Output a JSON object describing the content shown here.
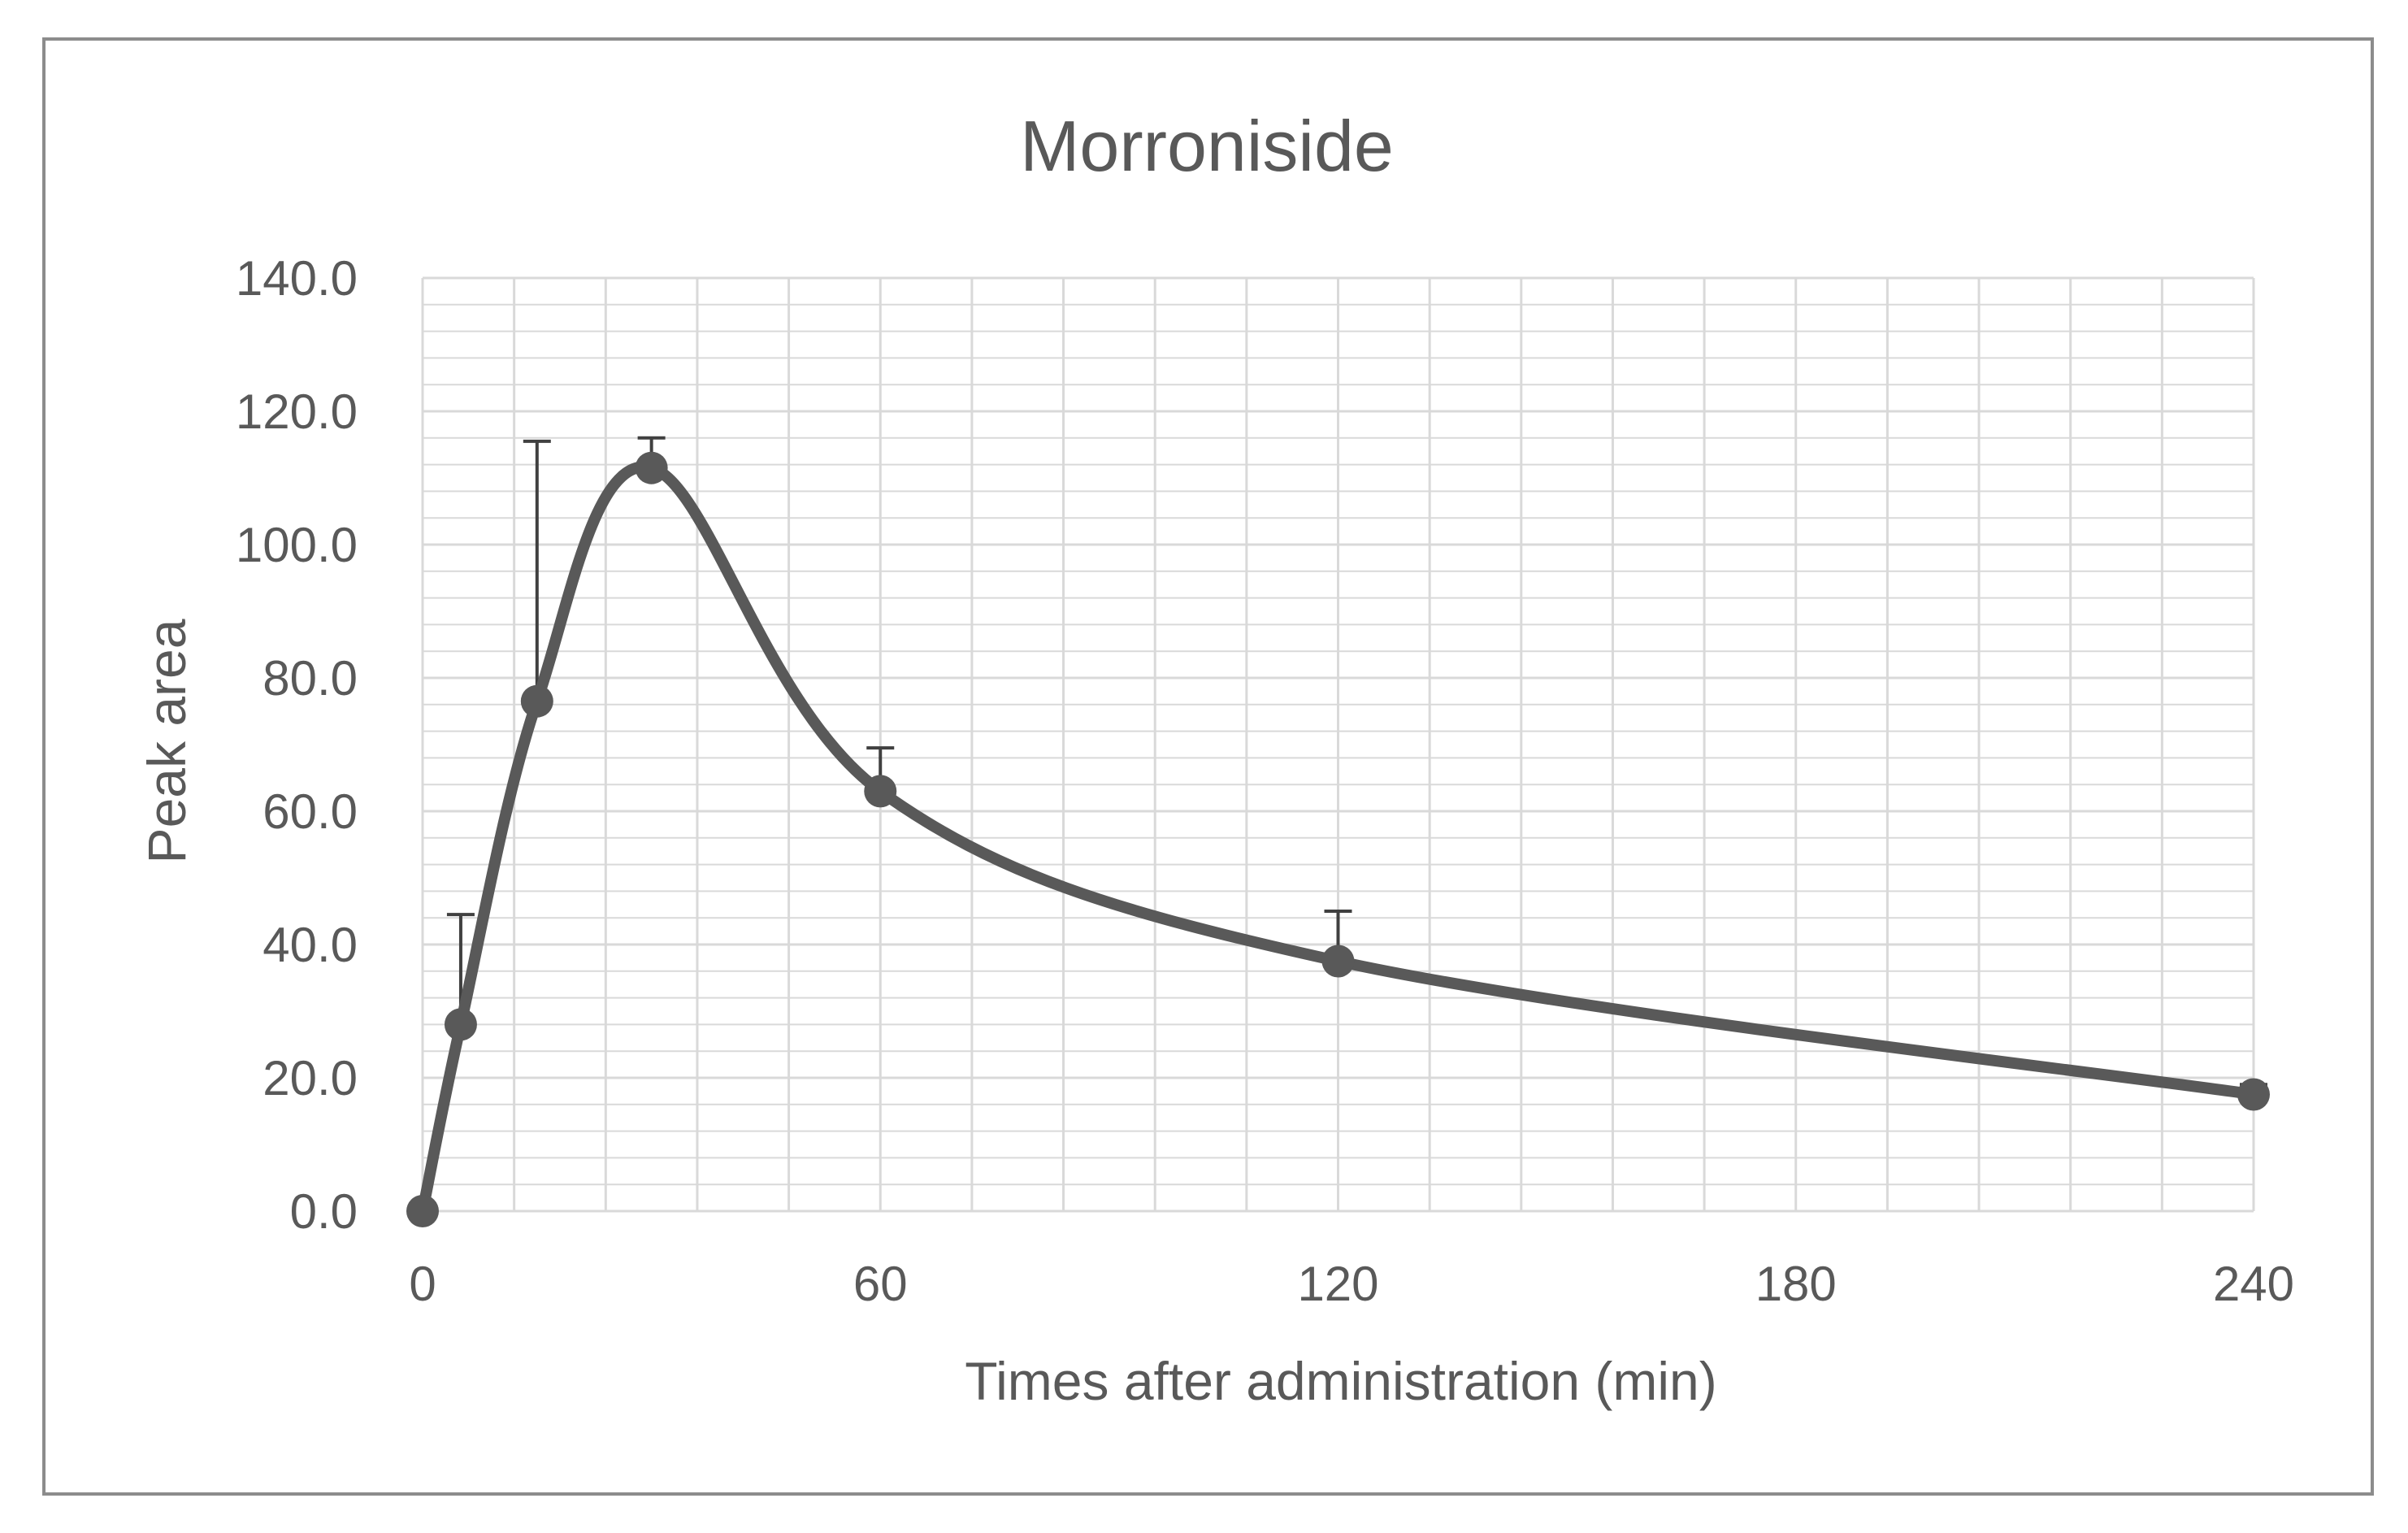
{
  "chart_data": {
    "type": "line",
    "title": "Morroniside",
    "xlabel": "Times after administration (min)",
    "ylabel": "Peak area",
    "xlim": [
      0,
      240
    ],
    "ylim": [
      0,
      140
    ],
    "x_ticks": [
      "0",
      "60",
      "120",
      "180",
      "240"
    ],
    "x_tick_values": [
      0,
      60,
      120,
      180,
      240
    ],
    "y_ticks": [
      "0.0",
      "20.0",
      "40.0",
      "60.0",
      "80.0",
      "100.0",
      "120.0",
      "140.0"
    ],
    "y_tick_values": [
      0,
      20,
      40,
      60,
      80,
      100,
      120,
      140
    ],
    "grid": true,
    "smooth": true,
    "series": [
      {
        "x": [
          0,
          5,
          15,
          30,
          60,
          120,
          240
        ],
        "y": [
          0.0,
          28.0,
          76.5,
          111.5,
          63.0,
          37.5,
          17.5
        ],
        "error_upper": [
          0,
          16.5,
          39.0,
          4.5,
          6.5,
          7.5,
          1.5
        ]
      }
    ],
    "colors": {
      "line": "#595959",
      "grid": "#d9d9d9",
      "text": "#595959"
    }
  }
}
